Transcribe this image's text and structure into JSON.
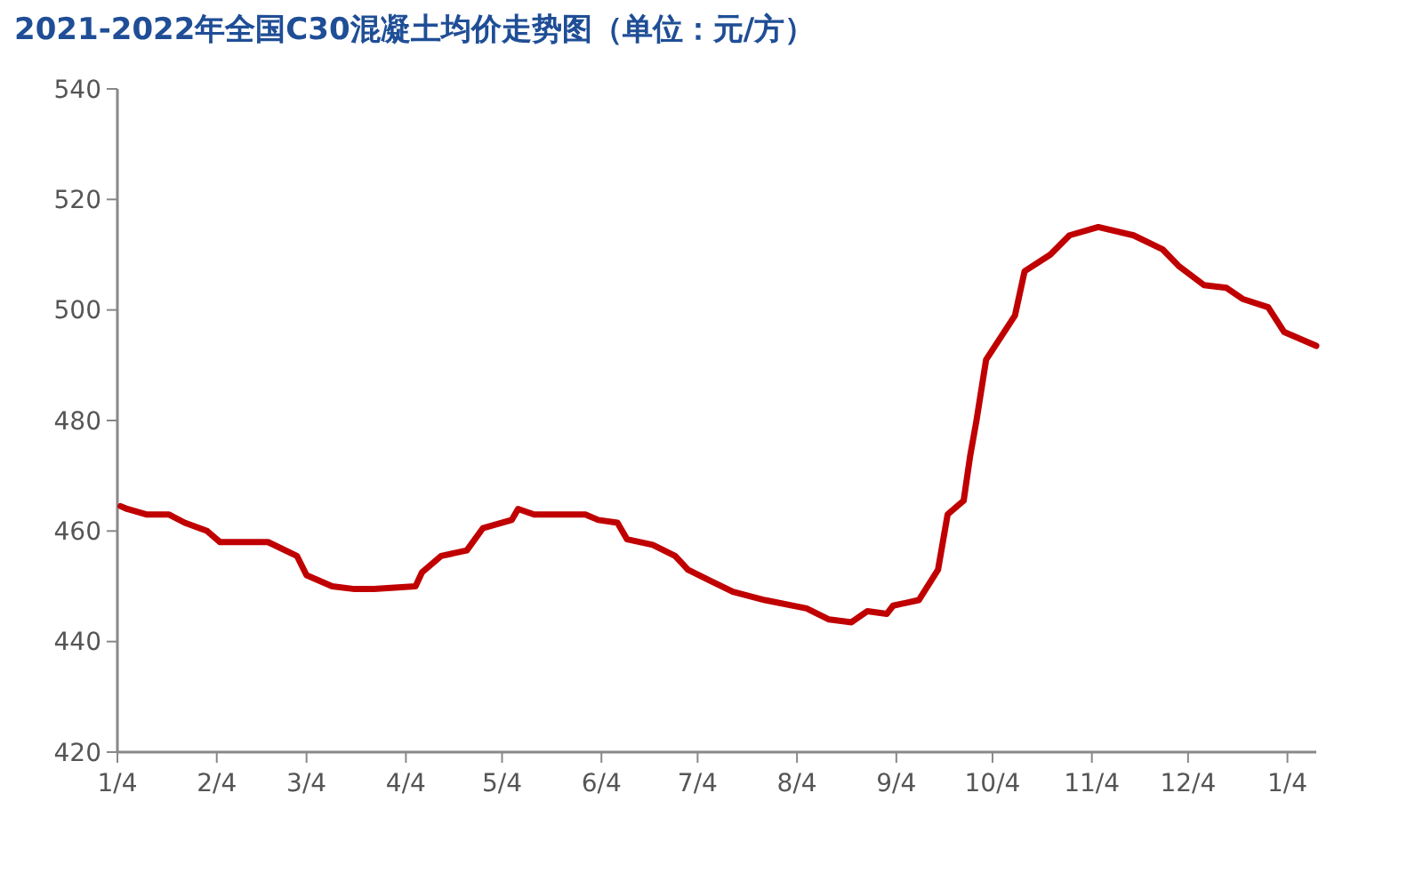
{
  "chart_data": {
    "type": "line",
    "title": "2021-2022年全国C30混凝土均价走势图（单位：元/方）",
    "x": [
      "2021-01-05",
      "2021-01-07",
      "2021-01-13",
      "2021-01-20",
      "2021-01-25",
      "2021-02-01",
      "2021-02-05",
      "2021-02-20",
      "2021-03-01",
      "2021-03-04",
      "2021-03-12",
      "2021-03-19",
      "2021-03-25",
      "2021-04-07",
      "2021-04-09",
      "2021-04-15",
      "2021-04-23",
      "2021-04-28",
      "2021-05-07",
      "2021-05-09",
      "2021-05-14",
      "2021-05-30",
      "2021-06-03",
      "2021-06-09",
      "2021-06-12",
      "2021-06-20",
      "2021-06-27",
      "2021-07-01",
      "2021-07-08",
      "2021-07-15",
      "2021-07-25",
      "2021-08-07",
      "2021-08-14",
      "2021-08-21",
      "2021-08-26",
      "2021-09-01",
      "2021-09-03",
      "2021-09-11",
      "2021-09-17",
      "2021-09-20",
      "2021-09-25",
      "2021-09-27",
      "2021-09-29",
      "2021-10-02",
      "2021-10-11",
      "2021-10-14",
      "2021-10-22",
      "2021-10-28",
      "2021-11-06",
      "2021-11-17",
      "2021-11-26",
      "2021-12-01",
      "2021-12-09",
      "2021-12-16",
      "2021-12-21",
      "2021-12-29",
      "2022-01-03",
      "2022-01-13"
    ],
    "series": [
      {
        "color": "#c00000",
        "values": [
          464.5,
          464,
          463,
          463,
          461.5,
          460,
          458,
          458,
          455.5,
          452,
          450,
          449.5,
          449.5,
          450,
          452.5,
          455.5,
          456.5,
          460.5,
          462,
          464,
          463,
          463,
          462,
          461.5,
          458.5,
          457.5,
          455.5,
          453,
          451,
          449,
          447.5,
          446,
          444,
          443.5,
          445.5,
          445,
          446.5,
          447.5,
          453,
          463,
          465.5,
          473.5,
          480,
          491,
          499,
          507,
          510,
          513.5,
          515,
          513.5,
          511,
          508,
          504.5,
          504,
          502,
          500.5,
          496,
          493.5
        ]
      }
    ],
    "xlim": [
      "2021-01-04",
      "2022-01-13"
    ],
    "xticks": [
      {
        "value": "2021-01-04",
        "label": "1/4"
      },
      {
        "value": "2021-02-04",
        "label": "2/4"
      },
      {
        "value": "2021-03-04",
        "label": "3/4"
      },
      {
        "value": "2021-04-04",
        "label": "4/4"
      },
      {
        "value": "2021-05-04",
        "label": "5/4"
      },
      {
        "value": "2021-06-04",
        "label": "6/4"
      },
      {
        "value": "2021-07-04",
        "label": "7/4"
      },
      {
        "value": "2021-08-04",
        "label": "8/4"
      },
      {
        "value": "2021-09-04",
        "label": "9/4"
      },
      {
        "value": "2021-10-04",
        "label": "10/4"
      },
      {
        "value": "2021-11-04",
        "label": "11/4"
      },
      {
        "value": "2021-12-04",
        "label": "12/4"
      },
      {
        "value": "2022-01-04",
        "label": "1/4"
      }
    ],
    "ylim": [
      420,
      540
    ],
    "yticks": [
      420,
      440,
      460,
      480,
      500,
      520,
      540
    ],
    "grid": false,
    "line_style": "solid"
  }
}
